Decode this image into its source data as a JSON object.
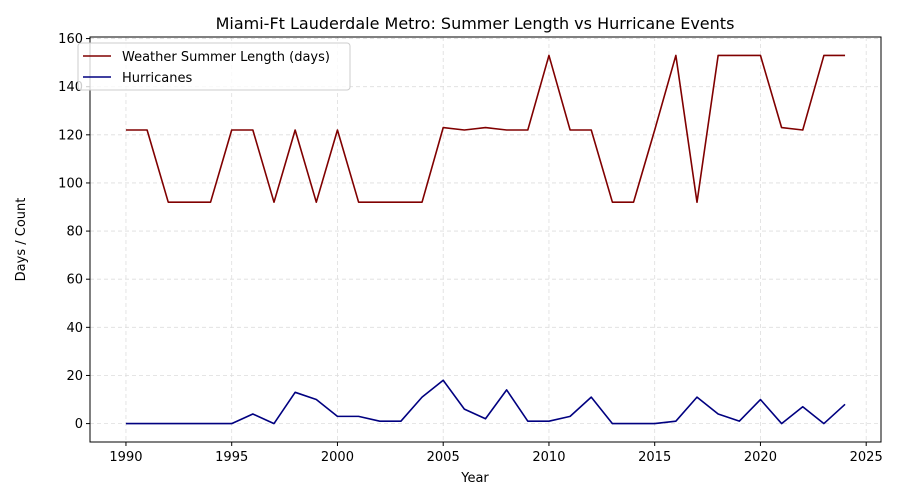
{
  "chart_data": {
    "type": "line",
    "title": "Miami-Ft Lauderdale Metro: Summer Length vs Hurricane Events",
    "xlabel": "Year",
    "ylabel": "Days / Count",
    "x": [
      1990,
      1991,
      1992,
      1993,
      1994,
      1995,
      1996,
      1997,
      1998,
      1999,
      2000,
      2001,
      2002,
      2003,
      2004,
      2005,
      2006,
      2007,
      2008,
      2009,
      2010,
      2011,
      2012,
      2013,
      2014,
      2015,
      2016,
      2017,
      2018,
      2019,
      2020,
      2021,
      2022,
      2023,
      2024
    ],
    "series": [
      {
        "name": "Weather Summer Length (days)",
        "color": "#800000",
        "values": [
          122,
          122,
          92,
          92,
          92,
          122,
          122,
          92,
          122,
          92,
          122,
          92,
          92,
          92,
          92,
          123,
          122,
          123,
          122,
          122,
          153,
          122,
          122,
          92,
          92,
          122,
          153,
          92,
          153,
          153,
          153,
          123,
          122,
          153,
          153
        ]
      },
      {
        "name": "Hurricanes",
        "color": "#000080",
        "values": [
          0,
          0,
          0,
          0,
          0,
          0,
          4,
          0,
          13,
          10,
          3,
          3,
          1,
          1,
          11,
          18,
          6,
          2,
          14,
          1,
          1,
          3,
          11,
          0,
          0,
          0,
          1,
          11,
          4,
          1,
          10,
          0,
          7,
          0,
          8
        ]
      }
    ],
    "xlim": [
      1988.3,
      2025.7
    ],
    "ylim": [
      -7.65,
      160.65
    ],
    "xticks": [
      1990,
      1995,
      2000,
      2005,
      2010,
      2015,
      2020,
      2025
    ],
    "yticks": [
      0,
      20,
      40,
      60,
      80,
      100,
      120,
      140,
      160
    ],
    "grid": true,
    "legend": "top-left"
  }
}
